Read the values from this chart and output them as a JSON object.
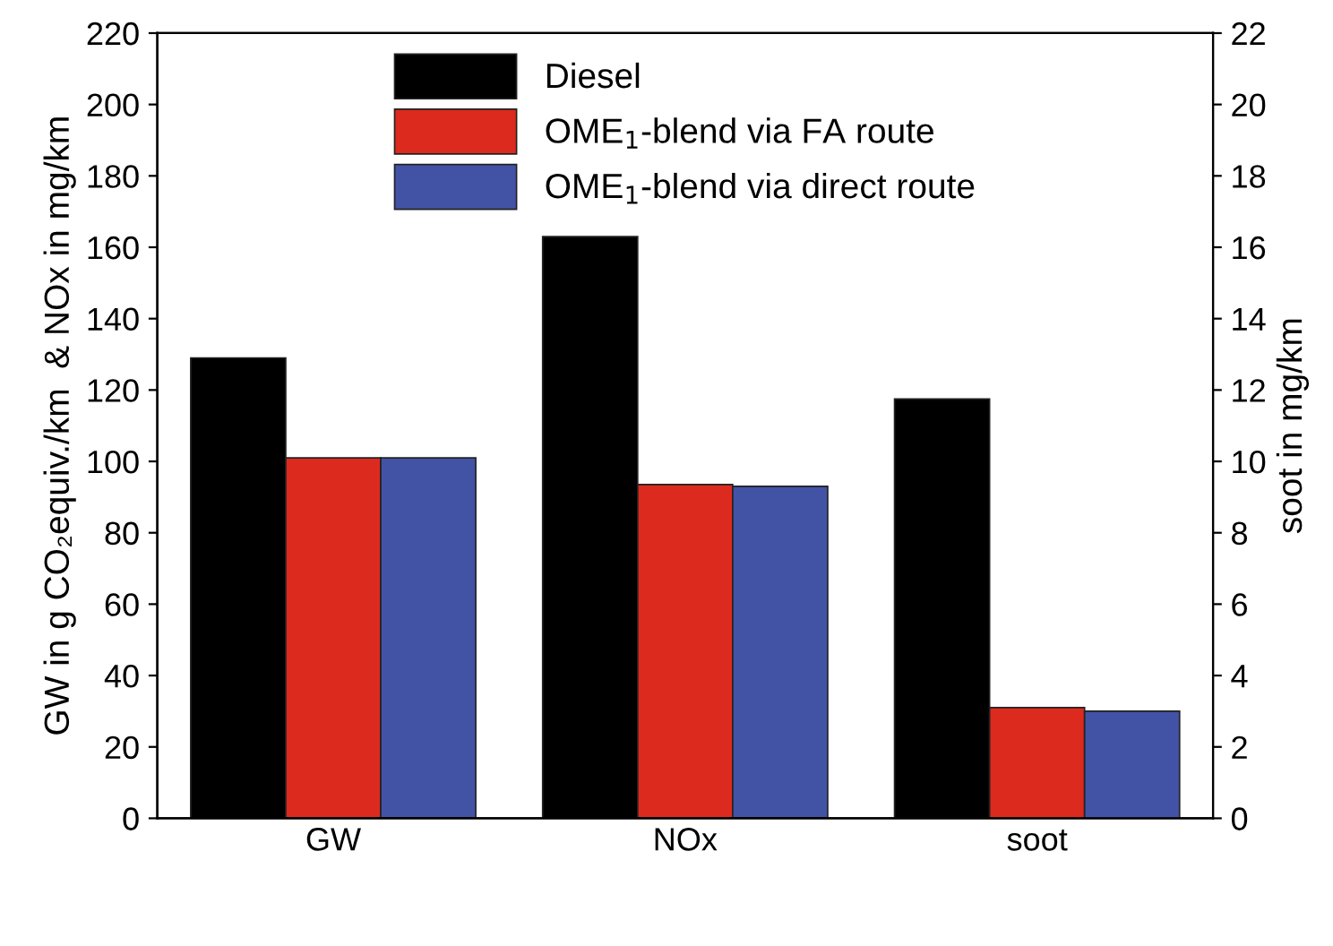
{
  "chart_data": {
    "type": "bar",
    "categories": [
      "GW",
      "NOx",
      "soot"
    ],
    "ylabel": "GW in g CO₂equiv./km  & NOx in mg/km",
    "y2label": "soot in mg/km",
    "ylim": [
      0,
      220
    ],
    "yticks": [
      0,
      20,
      40,
      60,
      80,
      100,
      120,
      140,
      160,
      180,
      200,
      220
    ],
    "y2lim": [
      0,
      22
    ],
    "y2ticks": [
      0,
      2,
      4,
      6,
      8,
      10,
      12,
      14,
      16,
      18,
      20,
      22
    ],
    "grid": false,
    "legend": "top",
    "series": [
      {
        "name": "Diesel",
        "color": "#000000",
        "values": [
          129,
          163,
          null
        ]
      },
      {
        "name": "OME$_{1}$-blend via FA route",
        "color": "#dc2a1f",
        "values": [
          101,
          93.5,
          null
        ]
      },
      {
        "name": "OME$_{1}$-blend via direct route",
        "color": "#4253a6",
        "values": [
          101,
          93,
          null
        ]
      },
      {
        "color": "#000000",
        "axis": "y2",
        "values": [
          null,
          null,
          11.75
        ]
      },
      {
        "color": "#dc2a1f",
        "axis": "y2",
        "values": [
          null,
          null,
          3.1
        ]
      },
      {
        "color": "#4253a6",
        "axis": "y2",
        "values": [
          null,
          null,
          3.0
        ]
      }
    ]
  }
}
